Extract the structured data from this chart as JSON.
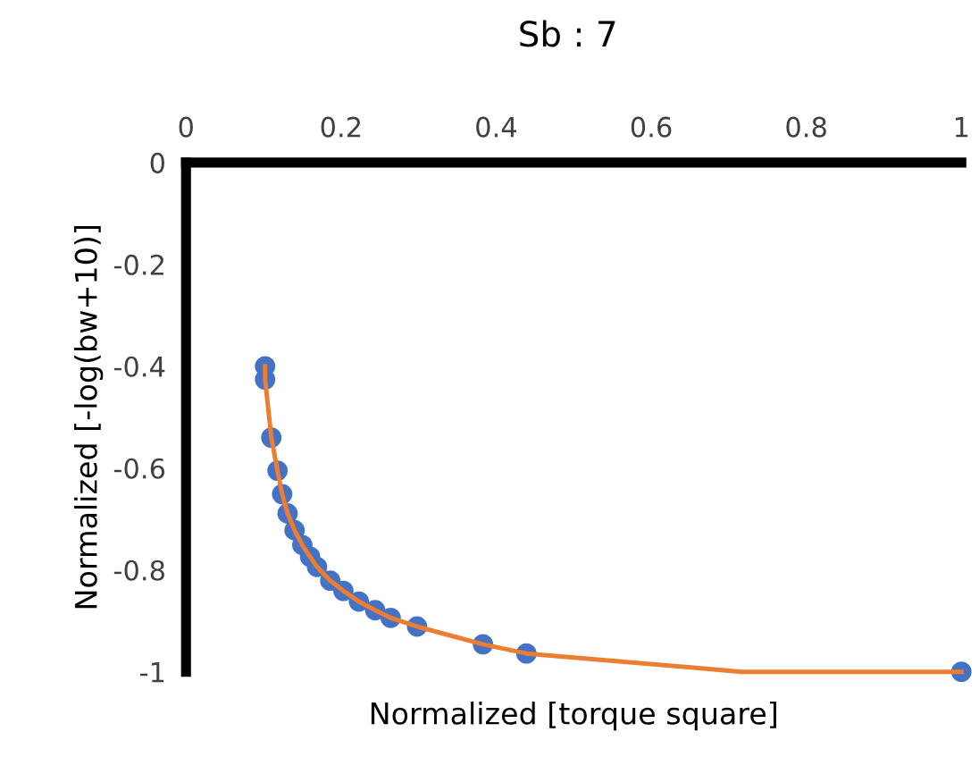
{
  "chart_data": {
    "type": "scatter",
    "title": "Sb : 7",
    "xlabel": "Normalized [torque square]",
    "ylabel": "Normalized [-log(bw+10)]",
    "xlim": [
      0,
      1
    ],
    "ylim": [
      -1,
      0
    ],
    "xticks": [
      0,
      0.2,
      0.4,
      0.6,
      0.8,
      1
    ],
    "yticks": [
      0,
      -0.2,
      -0.4,
      -0.6,
      -0.8,
      -1
    ],
    "grid": false,
    "legend": false,
    "series": [
      {
        "type": "line",
        "color": "#ed7d31",
        "marker": "none",
        "x": [
          0.102,
          0.102,
          0.11,
          0.118,
          0.124,
          0.131,
          0.14,
          0.15,
          0.16,
          0.169,
          0.186,
          0.203,
          0.223,
          0.244,
          0.264,
          0.298,
          0.383,
          0.439,
          0.717,
          1.0
        ],
        "values": [
          -0.4,
          -0.426,
          -0.54,
          -0.605,
          -0.651,
          -0.689,
          -0.722,
          -0.751,
          -0.774,
          -0.794,
          -0.821,
          -0.841,
          -0.862,
          -0.879,
          -0.894,
          -0.911,
          -0.946,
          -0.964,
          -1.0,
          -1.0
        ]
      },
      {
        "color": "#4472c4",
        "marker": "circle",
        "x": [
          0.102,
          0.102,
          0.11,
          0.118,
          0.124,
          0.131,
          0.14,
          0.15,
          0.16,
          0.169,
          0.186,
          0.203,
          0.223,
          0.244,
          0.264,
          0.298,
          0.383,
          0.439,
          1.0
        ],
        "values": [
          -0.4,
          -0.426,
          -0.54,
          -0.605,
          -0.651,
          -0.689,
          -0.722,
          -0.751,
          -0.774,
          -0.794,
          -0.821,
          -0.841,
          -0.862,
          -0.879,
          -0.894,
          -0.911,
          -0.946,
          -0.964,
          -1.0
        ]
      }
    ]
  }
}
